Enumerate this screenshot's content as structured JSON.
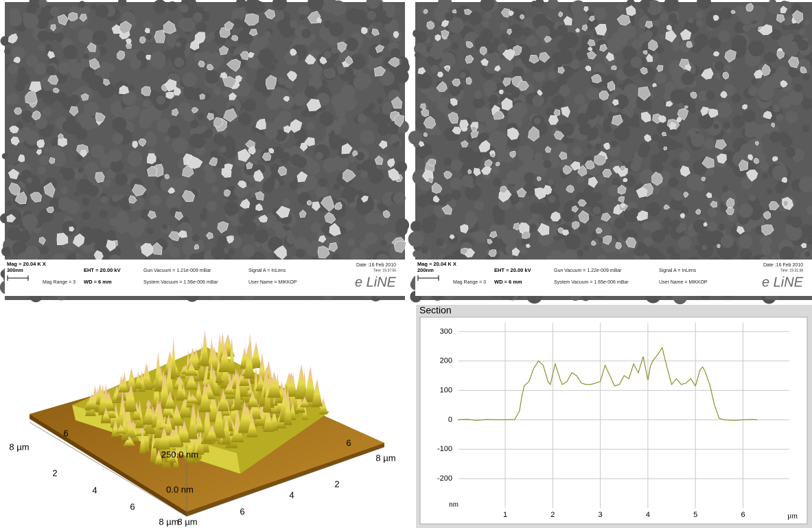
{
  "sem_images": [
    {
      "mag": "Mag = 20.04 K X",
      "scale_bar": "300nm",
      "mag_range": "Mag Range = 3",
      "eht": "EHT = 20.00 kV",
      "wd": "WD = 6 mm",
      "gun_vacuum": "Gun Vacuum = 1.21e-009 mBar",
      "system_vacuum": "System Vacuum = 1.56e-006 mBar",
      "signal": "Signal A = InLens",
      "user": "User Name = MIKKOP",
      "date": "Date :16 Feb 2010",
      "time": "Time :15:37:55",
      "logo": "e LiNE"
    },
    {
      "mag": "Mag = 20.04 K X",
      "scale_bar": "200nm",
      "mag_range": "Mag Range = 3",
      "eht": "EHT = 20.00 kV",
      "wd": "WD = 6 mm",
      "gun_vacuum": "Gun Vacuum = 1.22e-009 mBar",
      "system_vacuum": "System Vacuum = 1.65e-006 mBar",
      "signal": "Signal A = InLens",
      "user": "User Name = MIKKOP",
      "date": "Date :16 Feb 2010",
      "time": "Time :15:31:38",
      "logo": "e LiNE"
    }
  ],
  "afm_3d": {
    "z_labels": [
      "250.0 nm",
      "0.0 nm"
    ],
    "left_axis_labels": [
      "8 µm",
      "6",
      "2",
      "4",
      "6",
      "8 µm"
    ],
    "right_axis_labels": [
      "8 µm",
      "6",
      "4",
      "2",
      "8 µm",
      "6"
    ]
  },
  "chart_data": {
    "type": "line",
    "title": "Section",
    "y_unit": "nm",
    "x_unit": "µm",
    "xlim": [
      0,
      7
    ],
    "xticks": [
      1,
      2,
      3,
      4,
      5,
      6
    ],
    "ylim": [
      -300,
      330
    ],
    "yticks": [
      300,
      200,
      100,
      0,
      -100,
      -200
    ],
    "grid": true,
    "color": "#8f8f2e",
    "x": [
      0,
      0.2,
      0.4,
      0.6,
      0.8,
      1.0,
      1.2,
      1.3,
      1.35,
      1.4,
      1.5,
      1.6,
      1.7,
      1.8,
      1.9,
      1.95,
      2.05,
      2.15,
      2.2,
      2.3,
      2.4,
      2.5,
      2.6,
      2.7,
      2.8,
      2.9,
      3.0,
      3.1,
      3.2,
      3.3,
      3.4,
      3.5,
      3.6,
      3.7,
      3.8,
      3.9,
      4.0,
      4.05,
      4.1,
      4.2,
      4.3,
      4.4,
      4.5,
      4.6,
      4.7,
      4.8,
      4.9,
      5.0,
      5.1,
      5.15,
      5.2,
      5.3,
      5.4,
      5.5,
      5.6,
      5.8,
      6.0,
      6.2,
      6.3
    ],
    "values": [
      0,
      2,
      -2,
      1,
      0,
      0,
      1,
      30,
      80,
      115,
      130,
      175,
      200,
      185,
      130,
      120,
      190,
      140,
      120,
      130,
      160,
      150,
      125,
      120,
      120,
      125,
      130,
      185,
      150,
      115,
      120,
      150,
      140,
      190,
      160,
      215,
      135,
      180,
      200,
      220,
      245,
      180,
      120,
      140,
      120,
      125,
      140,
      115,
      170,
      180,
      165,
      120,
      50,
      5,
      0,
      -2,
      0,
      1,
      0
    ]
  }
}
